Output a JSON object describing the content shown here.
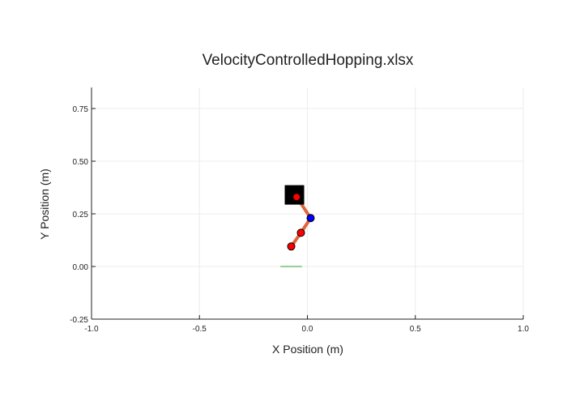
{
  "chart_data": {
    "type": "scatter",
    "title": "VelocityControlledHopping.xlsx",
    "xlabel": "X Position (m)",
    "ylabel": "Y Position (m)",
    "xlim": [
      -1.0,
      1.0
    ],
    "ylim": [
      -0.25,
      0.85
    ],
    "x_ticks": [
      -1.0,
      -0.5,
      0.0,
      0.5,
      1.0
    ],
    "x_tick_labels": [
      "-1.0",
      "-0.5",
      "0.0",
      "0.5",
      "1.0"
    ],
    "y_ticks": [
      -0.25,
      0.0,
      0.25,
      0.5,
      0.75
    ],
    "y_tick_labels": [
      "-0.25",
      "0.00",
      "0.25",
      "0.50",
      "0.75"
    ],
    "grid": true,
    "ground": {
      "x": [
        -0.125,
        -0.025
      ],
      "y": 0.0,
      "color": "#2ca02c"
    },
    "body": {
      "x": -0.06,
      "y": 0.34,
      "color": "#000000"
    },
    "links": [
      {
        "x": [
          -0.05,
          0.015
        ],
        "y": [
          0.33,
          0.23
        ]
      },
      {
        "x": [
          0.015,
          -0.03
        ],
        "y": [
          0.23,
          0.16
        ]
      },
      {
        "x": [
          -0.03,
          -0.075
        ],
        "y": [
          0.16,
          0.095
        ]
      }
    ],
    "joints": [
      {
        "x": -0.05,
        "y": 0.33,
        "color": "#ff0000"
      },
      {
        "x": 0.015,
        "y": 0.23,
        "color": "#0000ff"
      },
      {
        "x": -0.03,
        "y": 0.16,
        "color": "#ff0000"
      },
      {
        "x": -0.075,
        "y": 0.095,
        "color": "#ff0000"
      }
    ],
    "link_color": "#e0643c"
  }
}
